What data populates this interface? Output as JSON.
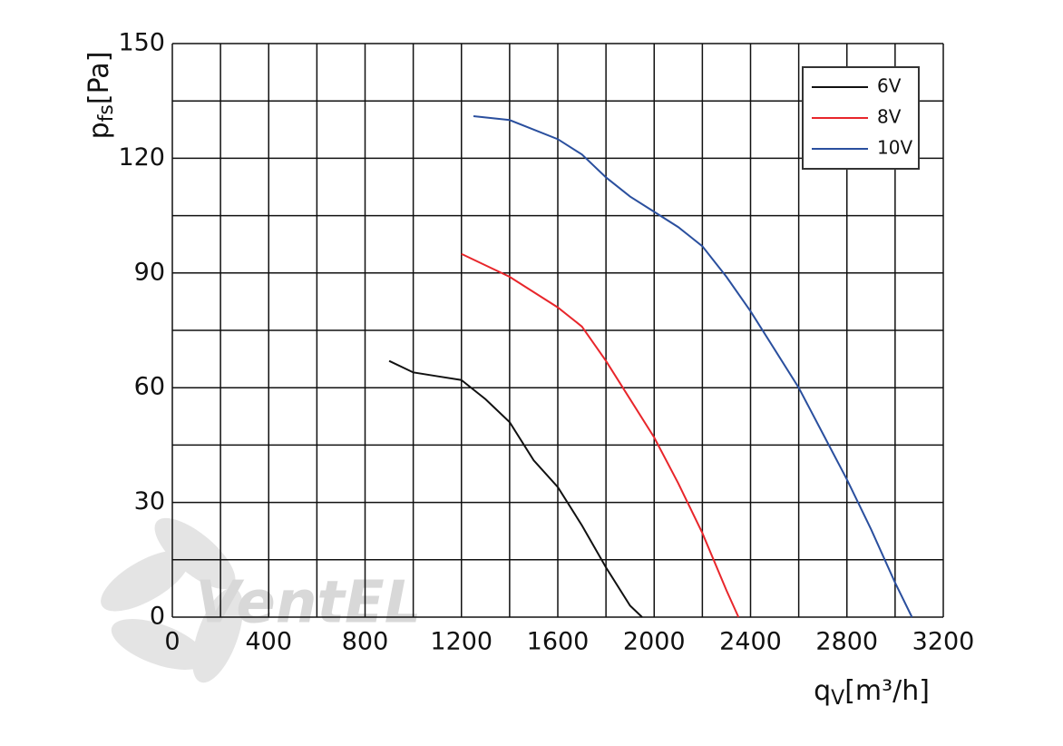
{
  "chart_data": {
    "type": "line",
    "y_label": "p",
    "y_label_sub": "fs",
    "y_label_unit": "[Pa]",
    "x_label": "q",
    "x_label_sub": "V",
    "x_label_unit": "[m³/h]",
    "watermark": "VentEL",
    "xlim": [
      0,
      3200
    ],
    "ylim": [
      0,
      150
    ],
    "xticks": [
      0,
      400,
      800,
      1200,
      1600,
      2000,
      2400,
      2800,
      3200
    ],
    "yticks": [
      0,
      30,
      60,
      90,
      120,
      150
    ],
    "xgrid": [
      200,
      600,
      1000,
      1400,
      1800,
      2200,
      2600,
      3000
    ],
    "ygrid": [
      15,
      45,
      75,
      105,
      135
    ],
    "grid": true,
    "legend": "upper right",
    "series": [
      {
        "name": "6V",
        "color": "#111111",
        "x": [
          900,
          1000,
          1100,
          1200,
          1300,
          1400,
          1500,
          1600,
          1700,
          1800,
          1900,
          1950
        ],
        "values": [
          67,
          64,
          63,
          62,
          57,
          51,
          41,
          34,
          24,
          13,
          3,
          0
        ]
      },
      {
        "name": "8V",
        "color": "#e8262b",
        "x": [
          1200,
          1300,
          1400,
          1500,
          1600,
          1700,
          1800,
          1900,
          2000,
          2100,
          2200,
          2300,
          2350
        ],
        "values": [
          95,
          92,
          89,
          85,
          81,
          76,
          67,
          57,
          47,
          35,
          22,
          7,
          0
        ]
      },
      {
        "name": "10V",
        "color": "#2a4f9e",
        "x": [
          1250,
          1400,
          1600,
          1700,
          1800,
          1900,
          2000,
          2100,
          2200,
          2300,
          2400,
          2500,
          2600,
          2700,
          2800,
          2900,
          3000,
          3070
        ],
        "values": [
          131,
          130,
          125,
          121,
          115,
          110,
          106,
          102,
          97,
          89,
          80,
          70,
          60,
          48,
          36,
          23,
          9,
          0
        ]
      }
    ]
  }
}
